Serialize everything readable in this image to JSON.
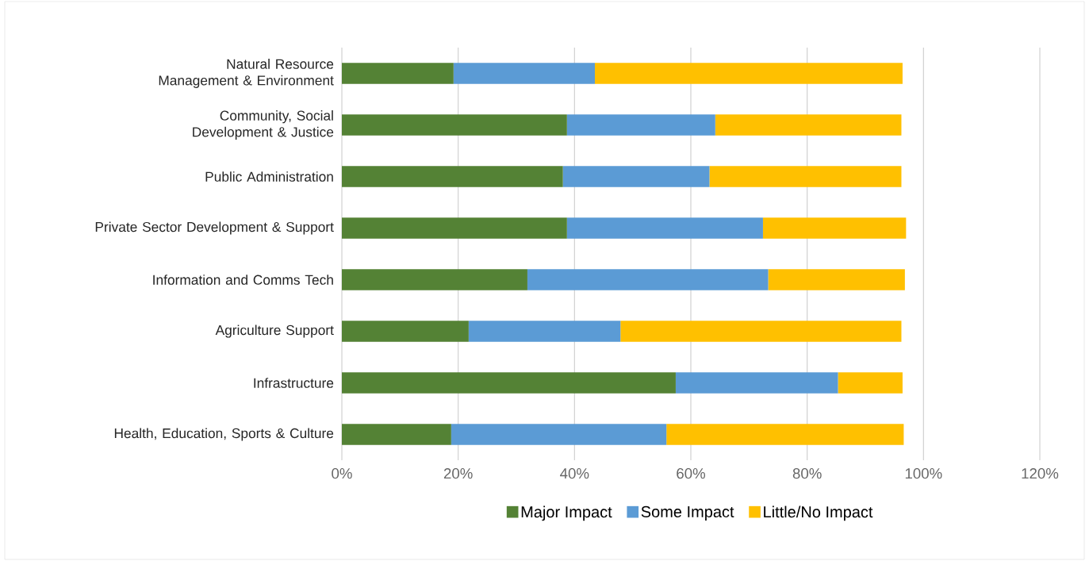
{
  "chart_data": {
    "type": "bar",
    "orientation": "horizontal",
    "stacked": true,
    "categories": [
      "Natural Resource Management & Environment",
      "Community, Social Development & Justice",
      "Public Administration",
      "Private Sector Development & Support",
      "Information and Comms Tech",
      "Agriculture Support",
      "Infrastructure",
      "Health, Education, Sports & Culture"
    ],
    "series": [
      {
        "name": "Major Impact",
        "color": "#548235",
        "values": [
          19.2,
          38.7,
          38.0,
          38.7,
          31.9,
          21.8,
          57.4,
          18.8
        ]
      },
      {
        "name": "Some Impact",
        "color": "#5b9bd5",
        "values": [
          24.3,
          25.5,
          25.2,
          33.7,
          41.4,
          26.1,
          27.9,
          37.0
        ]
      },
      {
        "name": "Little/No Impact",
        "color": "#ffc000",
        "values": [
          52.9,
          32.0,
          33.0,
          24.6,
          23.5,
          48.3,
          11.1,
          40.8
        ]
      }
    ],
    "xlim": [
      0,
      120
    ],
    "xticks": [
      {
        "value": 0,
        "label": "0%"
      },
      {
        "value": 20,
        "label": "20%"
      },
      {
        "value": 40,
        "label": "40%"
      },
      {
        "value": 60,
        "label": "60%"
      },
      {
        "value": 80,
        "label": "80%"
      },
      {
        "value": 100,
        "label": "100%"
      },
      {
        "value": 120,
        "label": "120%"
      }
    ],
    "grid": "x",
    "legend": "bottom"
  }
}
